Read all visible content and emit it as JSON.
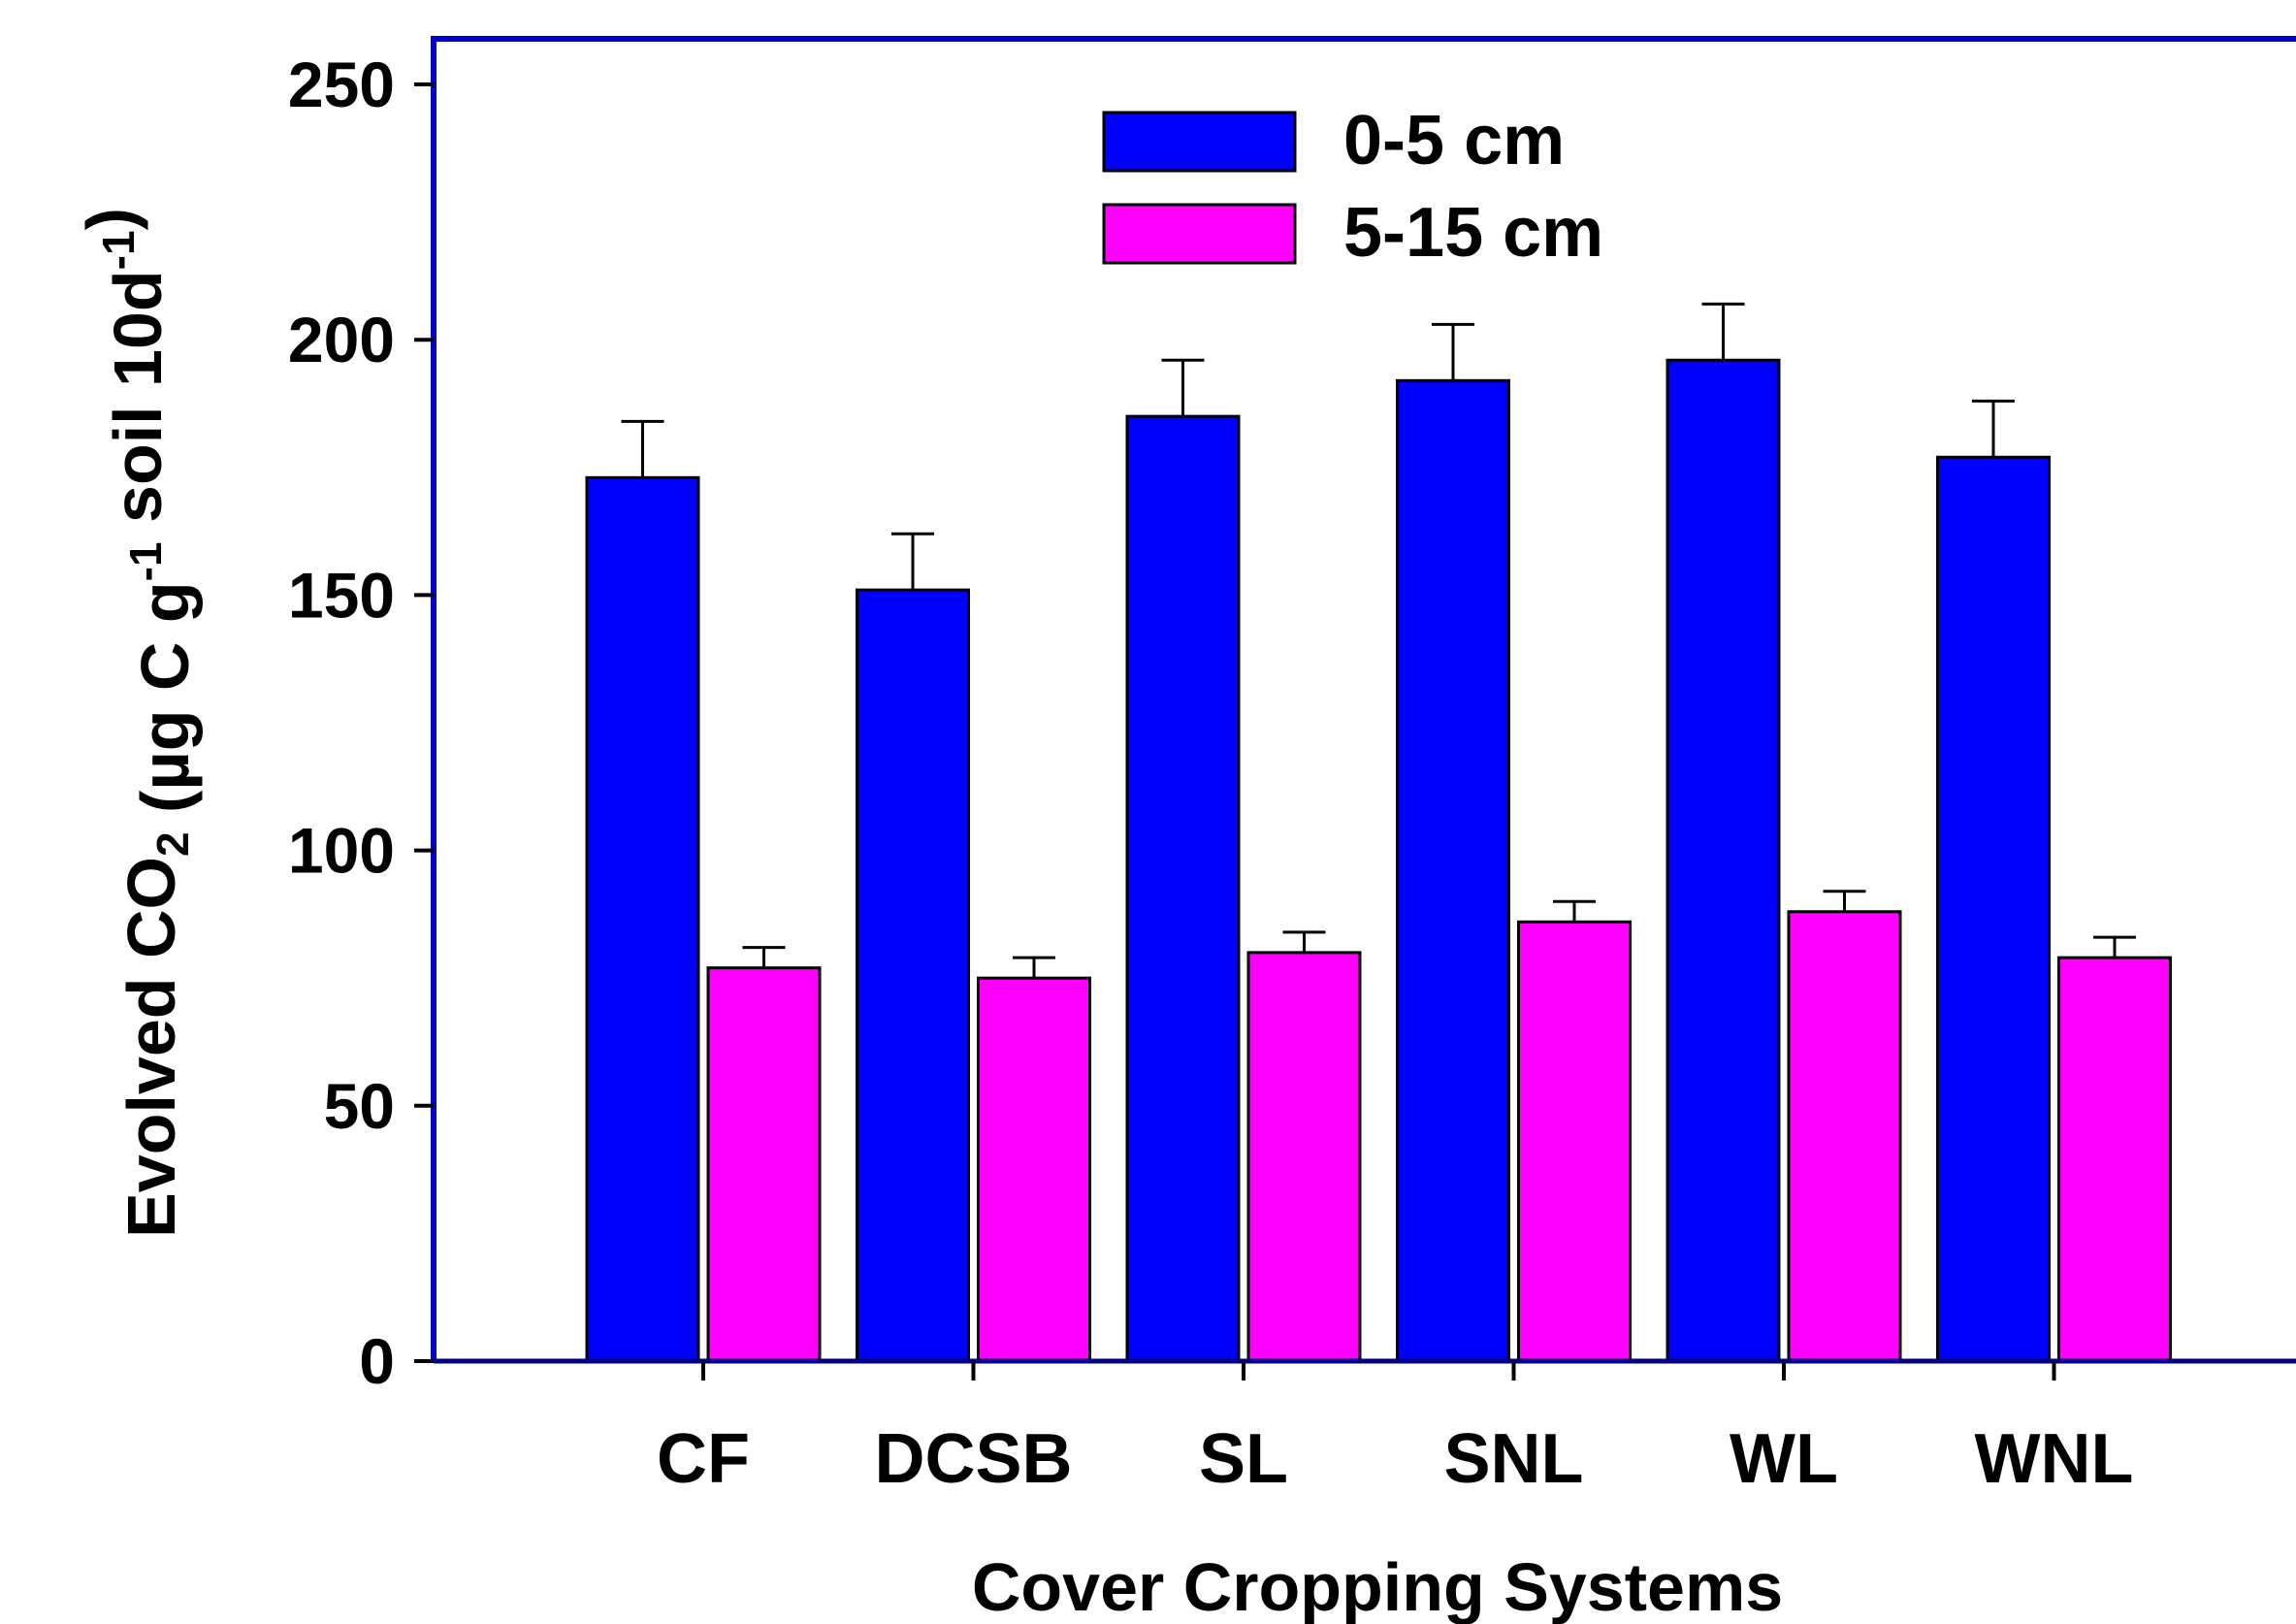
{
  "chart_data": {
    "type": "bar",
    "title": "",
    "xlabel": "Cover Cropping Systems",
    "ylabel": {
      "parts": [
        {
          "text": "Evolved CO",
          "style": "normal"
        },
        {
          "text": "2",
          "style": "sub"
        },
        {
          "text": " (µg C g",
          "style": "normal"
        },
        {
          "text": "-1",
          "style": "sup"
        },
        {
          "text": " soil 10d",
          "style": "normal"
        },
        {
          "text": "-1",
          "style": "sup"
        },
        {
          "text": ")",
          "style": "normal"
        }
      ]
    },
    "categories": [
      "CF",
      "DCSB",
      "SL",
      "SNL",
      "WL",
      "WNL"
    ],
    "series": [
      {
        "name": "0-5 cm",
        "color": "#0000ff",
        "values": [
          173,
          151,
          185,
          192,
          196,
          177
        ],
        "errors": [
          11,
          11,
          11,
          11,
          11,
          11
        ]
      },
      {
        "name": "5-15 cm",
        "color": "#ff00ff",
        "values": [
          77,
          75,
          80,
          86,
          88,
          79
        ],
        "errors": [
          4,
          4,
          4,
          4,
          4,
          4
        ]
      }
    ],
    "ylim": [
      0,
      250
    ],
    "yticks": [
      "0",
      "50",
      "100",
      "150",
      "200",
      "250"
    ],
    "grid": false,
    "legend_position": "top-center",
    "frame_color": "#0000c8"
  }
}
